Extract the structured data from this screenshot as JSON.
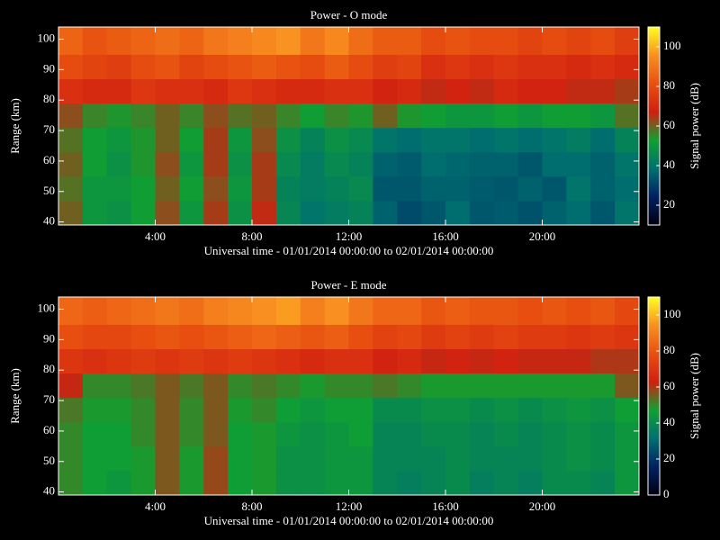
{
  "chart_data": [
    {
      "type": "heatmap",
      "title": "Power - O mode",
      "xlabel": "Universal time - 01/01/2014 00:00:00 to 02/01/2014 00:00:00",
      "ylabel": "Range (km)",
      "colorbar_label": "Signal power (dB)",
      "xlim": [
        0,
        24
      ],
      "ylim": [
        39,
        104
      ],
      "zlim": [
        10,
        110
      ],
      "xticks": [
        {
          "value": 4,
          "label": "4:00"
        },
        {
          "value": 8,
          "label": "8:00"
        },
        {
          "value": 12,
          "label": "12:00"
        },
        {
          "value": 16,
          "label": "16:00"
        },
        {
          "value": 20,
          "label": "20:00"
        }
      ],
      "yticks": [
        40,
        50,
        60,
        70,
        80,
        90,
        100
      ],
      "zticks": [
        20,
        40,
        60,
        80,
        100
      ],
      "colormap": [
        "#000010",
        "#002060",
        "#007070",
        "#10a030",
        "#d02010",
        "#e85010",
        "#f89020",
        "#ffff20"
      ],
      "x_edges": [
        0,
        1,
        2,
        3,
        4,
        5,
        6,
        7,
        8,
        9,
        10,
        11,
        12,
        13,
        14,
        15,
        16,
        17,
        18,
        19,
        20,
        21,
        22,
        23,
        24
      ],
      "y_edges": [
        39,
        47,
        55,
        63,
        71,
        79,
        87,
        95,
        104
      ],
      "values": [
        [
          60,
          50,
          48,
          52,
          62,
          50,
          64,
          48,
          66,
          45,
          40,
          42,
          44,
          36,
          32,
          34,
          38,
          34,
          35,
          33,
          36,
          38,
          34,
          40
        ],
        [
          58,
          50,
          50,
          52,
          60,
          52,
          62,
          50,
          64,
          44,
          42,
          44,
          46,
          34,
          34,
          36,
          36,
          35,
          34,
          36,
          34,
          40,
          36,
          38
        ],
        [
          60,
          52,
          48,
          54,
          62,
          50,
          64,
          48,
          64,
          46,
          42,
          46,
          44,
          36,
          35,
          38,
          37,
          36,
          36,
          34,
          38,
          38,
          36,
          40
        ],
        [
          58,
          52,
          50,
          54,
          60,
          52,
          64,
          50,
          62,
          48,
          44,
          48,
          46,
          40,
          38,
          40,
          40,
          38,
          40,
          38,
          40,
          42,
          38,
          44
        ],
        [
          62,
          56,
          54,
          56,
          60,
          56,
          62,
          58,
          60,
          56,
          52,
          56,
          54,
          60,
          54,
          52,
          50,
          50,
          52,
          50,
          52,
          52,
          50,
          58
        ],
        [
          72,
          70,
          70,
          74,
          72,
          72,
          70,
          74,
          72,
          70,
          70,
          72,
          72,
          68,
          70,
          66,
          68,
          66,
          70,
          68,
          68,
          66,
          66,
          64
        ],
        [
          80,
          78,
          76,
          80,
          82,
          78,
          80,
          82,
          84,
          82,
          80,
          84,
          80,
          76,
          78,
          72,
          74,
          72,
          74,
          72,
          72,
          70,
          72,
          70
        ],
        [
          86,
          82,
          84,
          86,
          88,
          86,
          90,
          92,
          94,
          96,
          90,
          94,
          88,
          84,
          84,
          80,
          82,
          80,
          80,
          78,
          80,
          78,
          80,
          76
        ]
      ]
    },
    {
      "type": "heatmap",
      "title": "Power - E mode",
      "xlabel": "Universal time - 01/01/2014 00:00:00 to 02/01/2014 00:00:00",
      "ylabel": "Range (km)",
      "colorbar_label": "Signal power (dB)",
      "xlim": [
        0,
        24
      ],
      "ylim": [
        39,
        104
      ],
      "zlim": [
        0,
        110
      ],
      "xticks": [
        {
          "value": 4,
          "label": "4:00"
        },
        {
          "value": 8,
          "label": "8:00"
        },
        {
          "value": 12,
          "label": "12:00"
        },
        {
          "value": 16,
          "label": "16:00"
        },
        {
          "value": 20,
          "label": "20:00"
        }
      ],
      "yticks": [
        40,
        50,
        60,
        70,
        80,
        90,
        100
      ],
      "zticks": [
        0,
        20,
        40,
        60,
        80,
        100
      ],
      "colormap": [
        "#000010",
        "#002060",
        "#007070",
        "#10a030",
        "#d02010",
        "#e85010",
        "#f89020",
        "#ffff20"
      ],
      "x_edges": [
        0,
        1,
        2,
        3,
        4,
        5,
        6,
        7,
        8,
        9,
        10,
        11,
        12,
        13,
        14,
        15,
        16,
        17,
        18,
        19,
        20,
        21,
        22,
        23,
        24
      ],
      "y_edges": [
        39,
        47,
        55,
        63,
        71,
        79,
        87,
        95,
        104
      ],
      "values": [
        [
          50,
          46,
          44,
          48,
          56,
          48,
          58,
          46,
          48,
          42,
          42,
          44,
          44,
          38,
          36,
          38,
          40,
          36,
          38,
          36,
          40,
          40,
          38,
          44
        ],
        [
          50,
          46,
          46,
          48,
          56,
          48,
          58,
          46,
          48,
          42,
          42,
          44,
          44,
          38,
          38,
          38,
          40,
          38,
          38,
          38,
          40,
          42,
          40,
          44
        ],
        [
          50,
          46,
          46,
          50,
          56,
          50,
          56,
          46,
          48,
          44,
          42,
          44,
          46,
          38,
          38,
          40,
          40,
          38,
          40,
          38,
          40,
          42,
          40,
          44
        ],
        [
          52,
          48,
          48,
          50,
          56,
          50,
          56,
          48,
          50,
          46,
          44,
          46,
          46,
          40,
          40,
          42,
          42,
          40,
          42,
          40,
          42,
          44,
          42,
          46
        ],
        [
          62,
          50,
          50,
          52,
          56,
          52,
          56,
          50,
          52,
          50,
          48,
          50,
          50,
          52,
          50,
          48,
          48,
          48,
          48,
          48,
          48,
          48,
          48,
          56
        ],
        [
          70,
          68,
          70,
          72,
          70,
          72,
          70,
          72,
          70,
          68,
          66,
          68,
          68,
          64,
          66,
          62,
          64,
          62,
          64,
          62,
          62,
          62,
          60,
          60
        ],
        [
          78,
          76,
          76,
          78,
          80,
          78,
          80,
          82,
          84,
          82,
          80,
          82,
          78,
          74,
          76,
          72,
          74,
          72,
          74,
          72,
          72,
          70,
          72,
          70
        ],
        [
          84,
          82,
          84,
          86,
          88,
          86,
          90,
          92,
          94,
          96,
          90,
          94,
          88,
          84,
          84,
          80,
          82,
          80,
          80,
          78,
          80,
          78,
          80,
          76
        ]
      ]
    }
  ]
}
